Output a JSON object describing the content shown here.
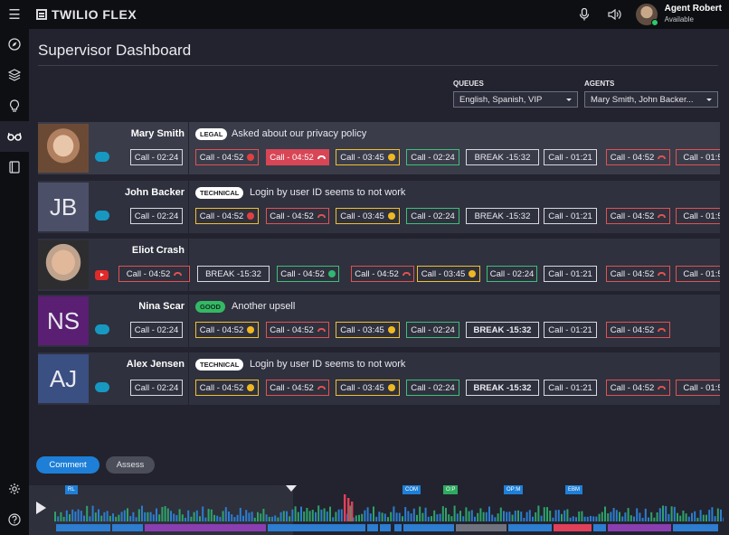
{
  "app": {
    "brand": "TWILIO FLEX"
  },
  "user": {
    "name": "Agent Robert",
    "status": "Available"
  },
  "nav": {
    "items": [
      "compass-icon",
      "layers-icon",
      "lightbulb-icon",
      "glasses-icon",
      "book-icon"
    ],
    "bottom": [
      "gear-icon",
      "help-icon"
    ]
  },
  "page": {
    "title": "Supervisor Dashboard"
  },
  "filters": {
    "queues": {
      "label": "QUEUES",
      "value": "English, Spanish, VIP"
    },
    "agents": {
      "label": "AGENTS",
      "value": "Mary Smith, John Backer..."
    }
  },
  "agents": [
    {
      "name": "Mary Smith",
      "photo": "photo",
      "initials": "",
      "tag": "LEGAL",
      "tag_style": "light",
      "note": "Asked about our privacy policy",
      "channel": "salesforce-icon",
      "highlight": true,
      "chips": [
        {
          "label": "Call - 02:24",
          "style": "white",
          "status": ""
        },
        {
          "label": "Call - 04:52",
          "style": "red",
          "status": "red-dot"
        },
        {
          "label": "Call - 04:52",
          "style": "filled-red",
          "status": "hangup"
        },
        {
          "label": "Call - 03:45",
          "style": "yellow",
          "status": "yellow-dot"
        },
        {
          "label": "Call - 02:24",
          "style": "green",
          "status": ""
        },
        {
          "label": "BREAK -15:32",
          "style": "white",
          "status": ""
        },
        {
          "label": "Call - 01:21",
          "style": "white",
          "status": ""
        },
        {
          "label": "Call - 04:52",
          "style": "red",
          "status": "hangup"
        },
        {
          "label": "Call - 01:5",
          "style": "red",
          "status": ""
        }
      ]
    },
    {
      "name": "John Backer",
      "photo": "initials",
      "initials": "JB",
      "photo_color": "#4b5068",
      "tag": "TECHNICAL",
      "tag_style": "light",
      "note": "Login by user ID seems to not work",
      "channel": "salesforce-icon",
      "highlight": false,
      "chips": [
        {
          "label": "Call - 02:24",
          "style": "white",
          "status": ""
        },
        {
          "label": "Call - 04:52",
          "style": "yellow",
          "status": "red-dot"
        },
        {
          "label": "Call - 04:52",
          "style": "red",
          "status": "hangup"
        },
        {
          "label": "Call - 03:45",
          "style": "yellow",
          "status": "yellow-dot"
        },
        {
          "label": "Call - 02:24",
          "style": "green",
          "status": ""
        },
        {
          "label": "BREAK -15:32",
          "style": "white",
          "status": ""
        },
        {
          "label": "Call - 01:21",
          "style": "white",
          "status": ""
        },
        {
          "label": "Call - 04:52",
          "style": "red",
          "status": "hangup"
        },
        {
          "label": "Call - 01:5",
          "style": "red",
          "status": ""
        }
      ]
    },
    {
      "name": "Eliot Crash",
      "photo": "photo",
      "initials": "",
      "tag": "",
      "note": "",
      "channel": "youtube-icon",
      "highlight": false,
      "chips": [
        {
          "label": "Call - 04:52",
          "style": "red",
          "status": "hangup"
        },
        {
          "label": "BREAK -15:32",
          "style": "white",
          "status": ""
        },
        {
          "label": "Call - 04:52",
          "style": "green",
          "status": "green-dot"
        },
        {
          "label": "Call - 04:52",
          "style": "red",
          "status": "hangup"
        },
        {
          "label": "Call - 03:45",
          "style": "yellow",
          "status": "yellow-dot"
        },
        {
          "label": "Call - 02:24",
          "style": "green",
          "status": ""
        },
        {
          "label": "Call - 01:21",
          "style": "white",
          "status": ""
        },
        {
          "label": "Call - 04:52",
          "style": "red",
          "status": "hangup"
        },
        {
          "label": "Call - 01:5",
          "style": "red",
          "status": ""
        }
      ]
    },
    {
      "name": "Nina Scar",
      "photo": "initials",
      "initials": "NS",
      "photo_color": "#5a1f73",
      "tag": "GOOD",
      "tag_style": "good",
      "note": "Another upsell",
      "channel": "salesforce-icon",
      "highlight": false,
      "chips": [
        {
          "label": "Call - 02:24",
          "style": "white",
          "status": ""
        },
        {
          "label": "Call - 04:52",
          "style": "yellow",
          "status": "yellow-dot"
        },
        {
          "label": "Call - 04:52",
          "style": "red",
          "status": "hangup"
        },
        {
          "label": "Call - 03:45",
          "style": "yellow",
          "status": "yellow-dot"
        },
        {
          "label": "Call - 02:24",
          "style": "green",
          "status": ""
        },
        {
          "label": "BREAK -15:32",
          "style": "white-bold",
          "status": ""
        },
        {
          "label": "Call - 01:21",
          "style": "white",
          "status": ""
        },
        {
          "label": "Call - 04:52",
          "style": "red",
          "status": "hangup"
        }
      ]
    },
    {
      "name": "Alex Jensen",
      "photo": "initials",
      "initials": "AJ",
      "photo_color": "#3a4f82",
      "tag": "TECHNICAL",
      "tag_style": "light",
      "note": "Login by user ID seems to not work",
      "channel": "salesforce-icon",
      "highlight": false,
      "chips": [
        {
          "label": "Call - 02:24",
          "style": "white",
          "status": ""
        },
        {
          "label": "Call - 04:52",
          "style": "yellow",
          "status": "yellow-dot"
        },
        {
          "label": "Call - 04:52",
          "style": "red",
          "status": "hangup"
        },
        {
          "label": "Call - 03:45",
          "style": "yellow",
          "status": "yellow-dot"
        },
        {
          "label": "Call - 02:24",
          "style": "green",
          "status": ""
        },
        {
          "label": "BREAK -15:32",
          "style": "white-bold",
          "status": ""
        },
        {
          "label": "Call - 01:21",
          "style": "white",
          "status": ""
        },
        {
          "label": "Call - 04:52",
          "style": "red",
          "status": "hangup"
        },
        {
          "label": "Call - 01:5",
          "style": "red",
          "status": ""
        }
      ]
    }
  ],
  "actions": {
    "comment": "Comment",
    "assess": "Assess"
  },
  "timeline": {
    "markers": [
      {
        "label": "RL",
        "color": "blue"
      },
      {
        "label": "COM",
        "color": "blue"
      },
      {
        "label": "O:P",
        "color": "green"
      },
      {
        "label": "OP:M",
        "color": "blue"
      },
      {
        "label": "EBM",
        "color": "blue"
      }
    ]
  }
}
